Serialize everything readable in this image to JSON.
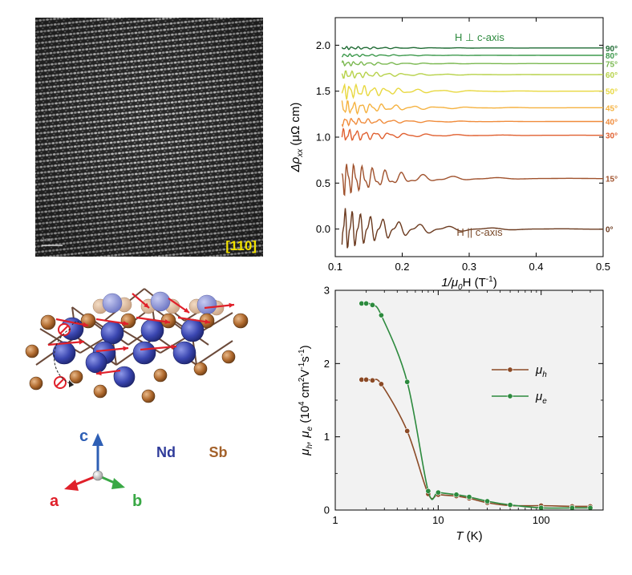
{
  "micrograph": {
    "zone_axis": "[110]",
    "zone_axis_color": "#f0e000",
    "scale_text": "2 nm"
  },
  "structure": {
    "element_1": "Nd",
    "element_2": "Sb",
    "element_1_color": "#2f3b9a",
    "element_2_color": "#a3612a",
    "spin_color": "#e0202a",
    "axes": {
      "a": {
        "label": "a",
        "color": "#e0202a"
      },
      "b": {
        "label": "b",
        "color": "#39a845"
      },
      "c": {
        "label": "c",
        "color": "#2e5fb5"
      }
    }
  },
  "chart_data": [
    {
      "id": "rho",
      "type": "line",
      "ylabel_prefix": "Δρ",
      "ylabel_sub": "xx",
      "ylabel_unit": "(μΩ cm)",
      "xlabel_prefix": "1/μ",
      "xlabel_sub": "0",
      "xlabel_suffix": "H (T",
      "xlabel_sup": "-1",
      "xlabel_close": ")",
      "xlim": [
        0.1,
        0.5
      ],
      "ylim": [
        -0.3,
        2.3
      ],
      "xticks": [
        0.1,
        0.2,
        0.3,
        0.4,
        0.5
      ],
      "xtick_labels": [
        "0.1",
        "0.2",
        "0.3",
        "0.4",
        "0.5"
      ],
      "yticks": [
        0.0,
        0.5,
        1.0,
        1.5,
        2.0
      ],
      "ytick_labels": [
        "0.0",
        "0.5",
        "1.0",
        "1.5",
        "2.0"
      ],
      "annotation_top": "H ⊥ c-axis",
      "annotation_top_color": "#2d8a3e",
      "annotation_bottom": "H || c-axis",
      "annotation_bottom_color": "#7a4a2a",
      "oscillation_start_x": 0.11,
      "series": [
        {
          "name": "0°",
          "offset": 0.0,
          "amplitude": 0.28,
          "color": "#6b3a1f"
        },
        {
          "name": "15°",
          "offset": 0.55,
          "amplitude": 0.22,
          "color": "#a0522d"
        },
        {
          "name": "30°",
          "offset": 1.02,
          "amplitude": 0.08,
          "color": "#e06030"
        },
        {
          "name": "40°",
          "offset": 1.17,
          "amplitude": 0.05,
          "color": "#f08c3c"
        },
        {
          "name": "45°",
          "offset": 1.32,
          "amplitude": 0.09,
          "color": "#f5b240"
        },
        {
          "name": "50°",
          "offset": 1.5,
          "amplitude": 0.1,
          "color": "#e8d840"
        },
        {
          "name": "60°",
          "offset": 1.68,
          "amplitude": 0.05,
          "color": "#b7d24a"
        },
        {
          "name": "75°",
          "offset": 1.8,
          "amplitude": 0.03,
          "color": "#7ab850"
        },
        {
          "name": "80°",
          "offset": 1.89,
          "amplitude": 0.02,
          "color": "#3f9a4e"
        },
        {
          "name": "90°",
          "offset": 1.97,
          "amplitude": 0.02,
          "color": "#1f6b34"
        }
      ]
    },
    {
      "id": "mobility",
      "type": "line",
      "ylabel": "μh, μe (10⁴ cm²V⁻¹s⁻¹)",
      "ylabel_parts": {
        "p1": "μ",
        "s1": "h",
        "p2": ", μ",
        "s2": "e",
        "p3": " (10",
        "sup1": "4",
        "p4": " cm",
        "sup2": "2",
        "p5": "V",
        "sup3": "-1",
        "p6": "s",
        "sup4": "-1",
        "p7": ")"
      },
      "xlabel_italic": "T",
      "xlabel_rest": " (K)",
      "xscale": "log",
      "xlim": [
        1,
        400
      ],
      "ylim": [
        0,
        3
      ],
      "xticks": [
        1,
        10,
        100
      ],
      "xtick_labels": [
        "1",
        "10",
        "100"
      ],
      "yticks": [
        0,
        1,
        2,
        3
      ],
      "ytick_labels": [
        "0",
        "1",
        "2",
        "3"
      ],
      "background": "#f2f2f2",
      "legend_position": "center-right",
      "series": [
        {
          "name": "μh",
          "name_base": "μ",
          "name_sub": "h",
          "color": "#8b4a26",
          "x": [
            1.8,
            2.0,
            2.3,
            2.8,
            5.0,
            8.0,
            10.0,
            15.0,
            20.0,
            30.0,
            50.0,
            100.0,
            200.0,
            300.0
          ],
          "y": [
            1.78,
            1.78,
            1.77,
            1.72,
            1.08,
            0.22,
            0.21,
            0.19,
            0.16,
            0.1,
            0.06,
            0.06,
            0.05,
            0.05
          ]
        },
        {
          "name": "μe",
          "name_base": "μ",
          "name_sub": "e",
          "color": "#2d8a3e",
          "x": [
            1.8,
            2.0,
            2.3,
            2.8,
            5.0,
            8.0,
            10.0,
            15.0,
            20.0,
            30.0,
            50.0,
            100.0,
            200.0,
            300.0
          ],
          "y": [
            2.82,
            2.82,
            2.8,
            2.66,
            1.75,
            0.26,
            0.24,
            0.21,
            0.18,
            0.12,
            0.07,
            0.03,
            0.03,
            0.03
          ]
        }
      ]
    }
  ]
}
